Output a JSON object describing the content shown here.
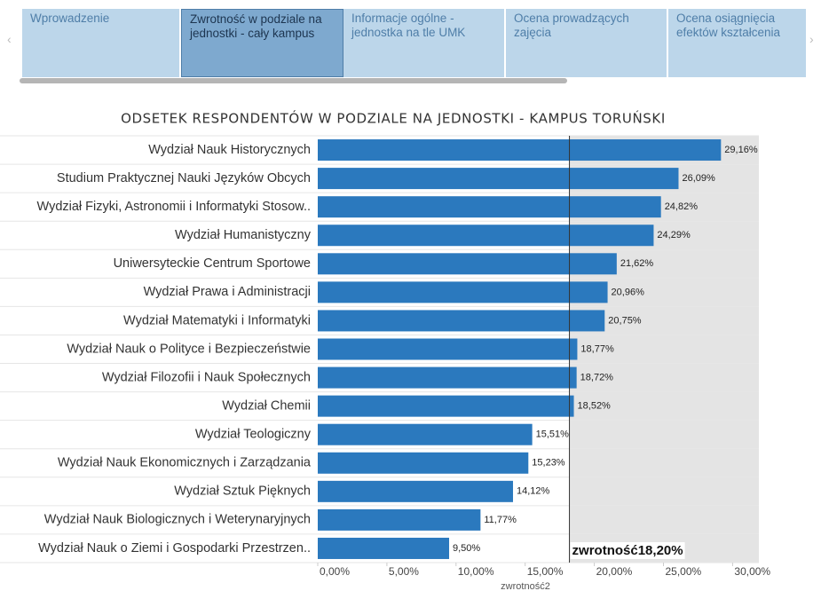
{
  "tabs": [
    "Wprowadzenie",
    "Zwrotność w podziale na jednostki - cały kampus",
    "Informacje ogólne - jednostka na tle UMK",
    "Ocena prowadzących zajęcia",
    "Ocena osiągnięcia efektów kształcenia"
  ],
  "selected_tab": 1,
  "chart_data": {
    "type": "bar",
    "orientation": "horizontal",
    "title": "ODSETEK RESPONDENTÓW W PODZIALE NA JEDNOSTKI - KAMPUS TORUŃSKI",
    "categories": [
      "Wydział Nauk Historycznych",
      "Studium Praktycznej Nauki Języków Obcych",
      "Wydział Fizyki, Astronomii i Informatyki Stosow..",
      "Wydział Humanistyczny",
      "Uniwersyteckie Centrum Sportowe",
      "Wydział Prawa i Administracji",
      "Wydział Matematyki i Informatyki",
      "Wydział Nauk o Polityce i Bezpieczeństwie",
      "Wydział Filozofii i Nauk Społecznych",
      "Wydział Chemii",
      "Wydział Teologiczny",
      "Wydział Nauk Ekonomicznych i Zarządzania",
      "Wydział Sztuk Pięknych",
      "Wydział Nauk Biologicznych i Weterynaryjnych",
      "Wydział Nauk o Ziemi i Gospodarki Przestrzen.."
    ],
    "values": [
      29.16,
      26.09,
      24.82,
      24.29,
      21.62,
      20.96,
      20.75,
      18.77,
      18.72,
      18.52,
      15.51,
      15.23,
      14.12,
      11.77,
      9.5
    ],
    "value_labels": [
      "29,16%",
      "26,09%",
      "24,82%",
      "24,29%",
      "21,62%",
      "20,96%",
      "20,75%",
      "18,77%",
      "18,72%",
      "18,52%",
      "15,51%",
      "15,23%",
      "14,12%",
      "11,77%",
      "9,50%"
    ],
    "color": "#2b79be",
    "xlim": [
      0,
      31.9
    ],
    "xticks": [
      {
        "value": 0,
        "label": "0,00%"
      },
      {
        "value": 5,
        "label": "5,00%"
      },
      {
        "value": 10,
        "label": "10,00%"
      },
      {
        "value": 15,
        "label": "15,00%"
      },
      {
        "value": 20,
        "label": "20,00%"
      },
      {
        "value": 25,
        "label": "25,00%"
      },
      {
        "value": 30,
        "label": "30,00%"
      }
    ],
    "xlabel": "zwrotność2",
    "reference": {
      "value": 18.2,
      "label": "zwrotność18,20%"
    }
  }
}
